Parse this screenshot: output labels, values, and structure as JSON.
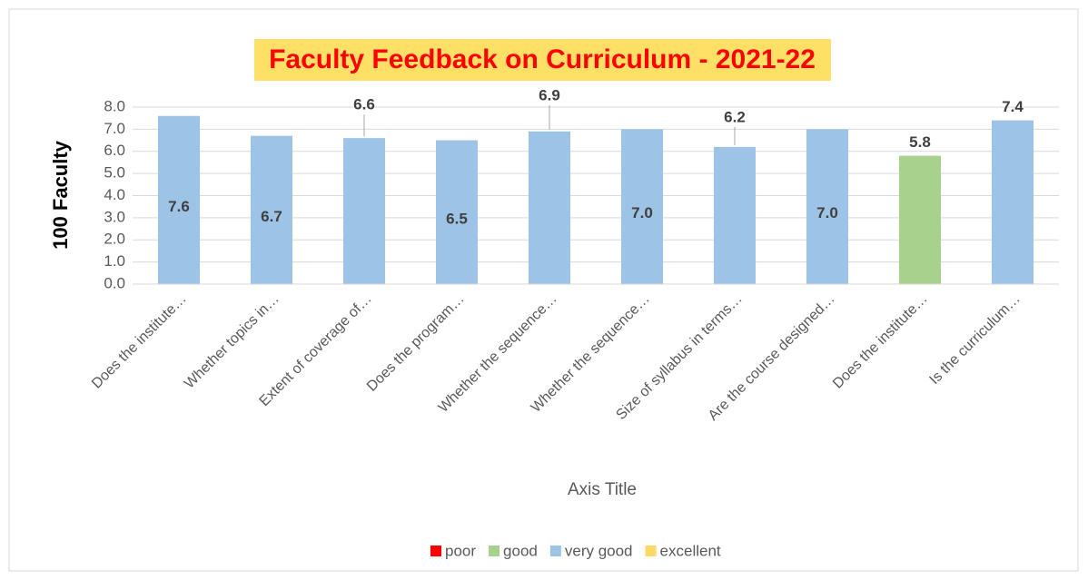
{
  "chart_data": {
    "type": "bar",
    "title": "Faculty Feedback on Curriculum - 2021-22",
    "y_axis_label": "100 Faculty",
    "x_axis_label": "Axis Title",
    "categories": [
      "Does the institute…",
      "Whether topics in…",
      "Extent of coverage of…",
      "Does the program…",
      "Whether the sequence…",
      "Whether the sequence…",
      "Size of syllabus in terms…",
      "Are the course designed…",
      "Does the institute…",
      "Is the curriculum…"
    ],
    "values": [
      7.6,
      6.7,
      6.6,
      6.5,
      6.9,
      7.0,
      6.2,
      7.0,
      5.8,
      7.4
    ],
    "value_labels": [
      "7.6",
      "6.7",
      "6.6",
      "6.5",
      "6.9",
      "7.0",
      "6.2",
      "7.0",
      "5.8",
      "7.4"
    ],
    "bar_colors": [
      "#9dc3e6",
      "#9dc3e6",
      "#9dc3e6",
      "#9dc3e6",
      "#9dc3e6",
      "#9dc3e6",
      "#9dc3e6",
      "#9dc3e6",
      "#a9d18e",
      "#9dc3e6"
    ],
    "legend": [
      {
        "name": "poor",
        "color": "#ff0000"
      },
      {
        "name": "good",
        "color": "#a9d18e"
      },
      {
        "name": "very good",
        "color": "#9dc3e6"
      },
      {
        "name": "excellent",
        "color": "#ffd966"
      }
    ],
    "ylim": [
      0,
      8
    ],
    "yticks": [
      {
        "value": 0,
        "label": "0.0"
      },
      {
        "value": 1,
        "label": "1.0"
      },
      {
        "value": 2,
        "label": "2.0"
      },
      {
        "value": 3,
        "label": "3.0"
      },
      {
        "value": 4,
        "label": "4.0"
      },
      {
        "value": 5,
        "label": "5.0"
      },
      {
        "value": 6,
        "label": "6.0"
      },
      {
        "value": 7,
        "label": "7.0"
      },
      {
        "value": 8,
        "label": "8.0"
      }
    ],
    "grid": true
  }
}
